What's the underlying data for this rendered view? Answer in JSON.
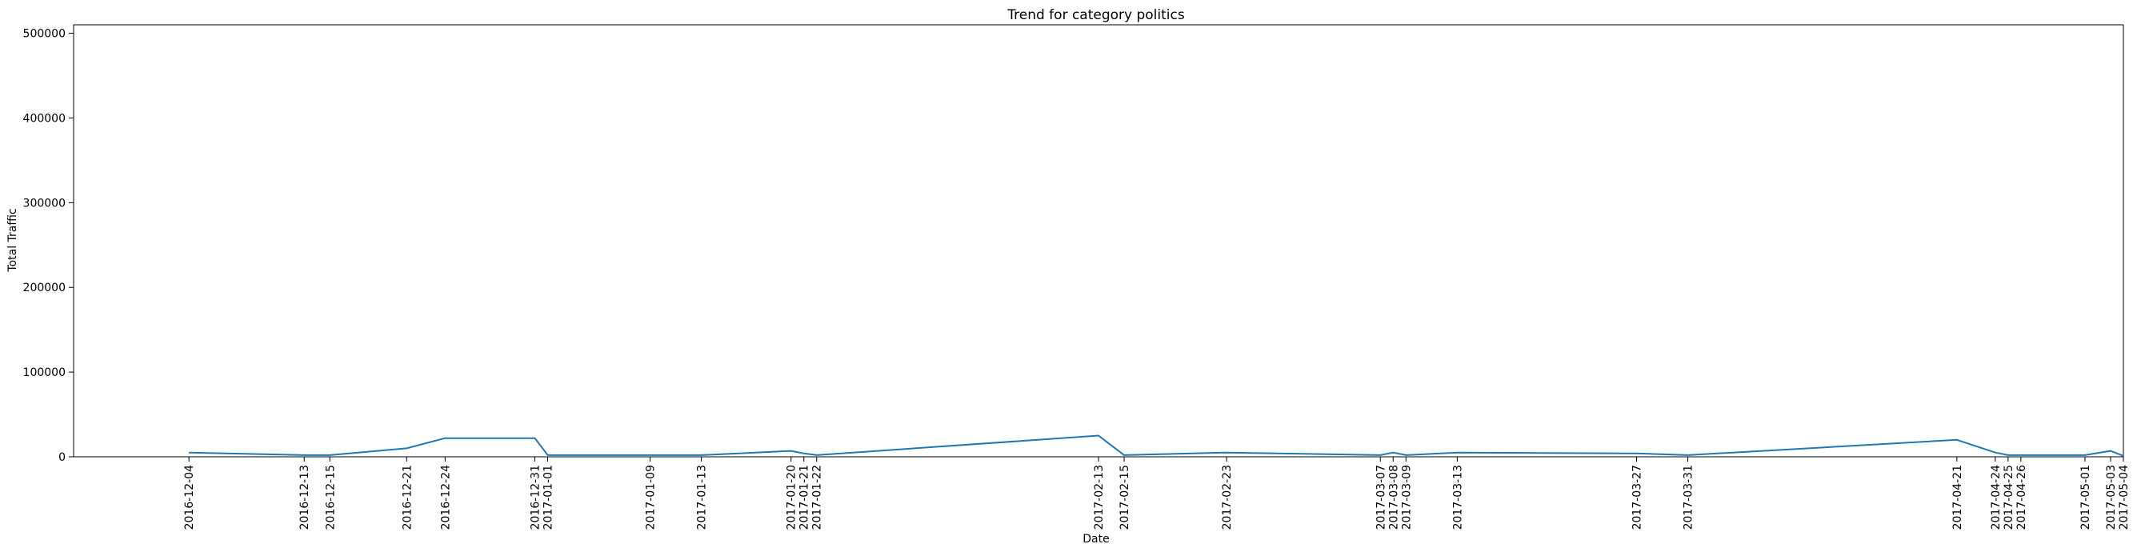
{
  "chart_data": {
    "type": "line",
    "title": "Trend for category politics",
    "xlabel": "Date",
    "ylabel": "Total Traffic",
    "ylim": [
      0,
      510000
    ],
    "yticks": [
      0,
      100000,
      200000,
      300000,
      400000,
      500000
    ],
    "xlim": [
      "2016-11-25",
      "2017-05-04"
    ],
    "grid": false,
    "line_color": "#1f77b4",
    "series": [
      {
        "x": [
          "2016-12-04",
          "2016-12-13",
          "2016-12-15",
          "2016-12-21",
          "2016-12-24",
          "2016-12-31",
          "2017-01-01",
          "2017-01-09",
          "2017-01-13",
          "2017-01-20",
          "2017-01-21",
          "2017-01-22",
          "2017-02-13",
          "2017-02-15",
          "2017-02-23",
          "2017-03-07",
          "2017-03-08",
          "2017-03-09",
          "2017-03-13",
          "2017-03-27",
          "2017-03-31",
          "2017-04-21",
          "2017-04-24",
          "2017-04-25",
          "2017-04-26",
          "2017-05-01",
          "2017-05-03",
          "2017-05-04"
        ],
        "values": [
          5000,
          2000,
          2000,
          10000,
          22000,
          22000,
          2000,
          2000,
          2000,
          7000,
          4000,
          2000,
          25000,
          2000,
          5000,
          2000,
          5000,
          2000,
          5000,
          4000,
          2000,
          20000,
          5000,
          2000,
          2000,
          2000,
          7000,
          1000
        ]
      }
    ]
  }
}
